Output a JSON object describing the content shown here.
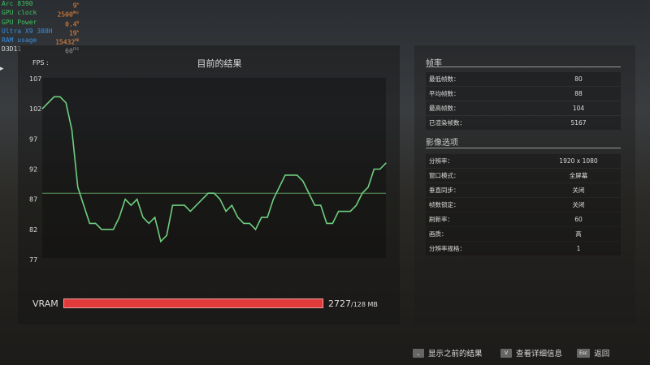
{
  "osd": [
    {
      "label": "Arc 8390",
      "value": "9",
      "unit": "%",
      "color": "#3fc060"
    },
    {
      "label": "GPU clock",
      "value": "2500",
      "unit": "MHz",
      "color": "#3fc060"
    },
    {
      "label": "GPU Power",
      "value": "0.4",
      "unit": "W",
      "color": "#3fc060"
    },
    {
      "label": "Ultra X9 388H",
      "value": "19",
      "unit": "%",
      "color": "#3a8fe0"
    },
    {
      "label": "RAM usage",
      "value": "15432",
      "unit": "MB",
      "color": "#3a8fe0"
    },
    {
      "label": "D3D11",
      "value": "60",
      "unit": "FPS",
      "color": "#dddddd"
    }
  ],
  "chart": {
    "title": "目前的结果",
    "ylabel": "FPS :"
  },
  "chart_data": {
    "type": "line",
    "title": "目前的结果",
    "ylabel": "FPS",
    "ylim": [
      77,
      107
    ],
    "yticks": [
      107,
      102,
      97,
      92,
      87,
      82,
      77
    ],
    "average": 88,
    "line_color": "#6fcf7f",
    "x": [
      0,
      2,
      3,
      4,
      5,
      6,
      8,
      9,
      10,
      12,
      13,
      14,
      15,
      16,
      17,
      18,
      19,
      20,
      21,
      22,
      24,
      25,
      28,
      29,
      30,
      31,
      32,
      33,
      34,
      35,
      36,
      37,
      38,
      39,
      41,
      43,
      44,
      45,
      46,
      47,
      48,
      49,
      50,
      52,
      53,
      54,
      55,
      56,
      57,
      58
    ],
    "y": [
      102,
      104,
      104,
      103,
      98.5,
      89,
      83,
      83,
      82,
      82,
      84,
      87,
      86,
      87,
      84,
      83,
      84,
      80,
      81,
      86,
      86,
      85,
      88,
      88,
      87,
      85,
      86,
      84,
      83,
      83,
      82,
      84,
      84,
      87,
      91,
      91,
      90,
      88,
      86,
      86,
      83,
      83,
      85,
      85,
      86,
      88,
      89,
      92,
      92,
      93
    ]
  },
  "vram": {
    "label": "VRAM",
    "used": "2727",
    "total": "/128 MB",
    "fill_fraction": 1.0,
    "color": "#e03a3a"
  },
  "framerate": {
    "heading": "帧率",
    "rows": [
      {
        "k": "最低帧数：",
        "v": "80"
      },
      {
        "k": "平均帧数：",
        "v": "88"
      },
      {
        "k": "最高帧数：",
        "v": "104"
      },
      {
        "k": "已渲染帧数：",
        "v": "5167"
      }
    ]
  },
  "video": {
    "heading": "影像选项",
    "rows": [
      {
        "k": "分辨率：",
        "v": "1920 x 1080"
      },
      {
        "k": "窗口模式：",
        "v": "全屏幕"
      },
      {
        "k": "垂直同步：",
        "v": "关闭"
      },
      {
        "k": "帧数锁定：",
        "v": "关闭"
      },
      {
        "k": "刷新率：",
        "v": "60"
      },
      {
        "k": "画质：",
        "v": "高"
      },
      {
        "k": "分辨率规格：",
        "v": "1"
      }
    ]
  },
  "footer": [
    {
      "key": "⎵",
      "label": "显示之前的结果"
    },
    {
      "key": "V",
      "label": "查看详细信息"
    },
    {
      "key": "Esc",
      "label": "返回"
    }
  ]
}
